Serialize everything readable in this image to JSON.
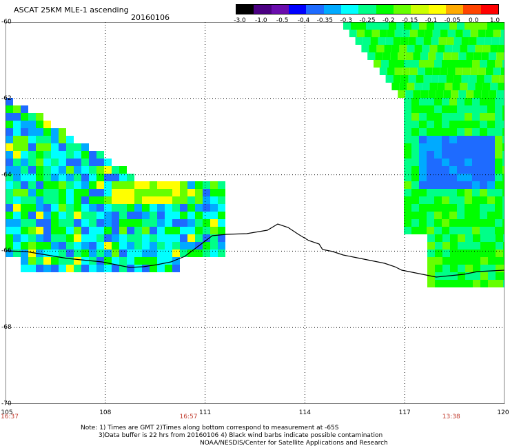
{
  "title": "ASCAT 25KM MLE-1 ascending",
  "date": "20160106",
  "colorbar": {
    "labels": [
      "-3.0",
      "-1.0",
      "-0.5",
      "-0.4",
      "-0.35",
      "-0.3",
      "-0.25",
      "-0.2",
      "-0.15",
      "-0.1",
      "-0.05",
      "0.0",
      "1.0"
    ],
    "colors": [
      "#000000",
      "#4b0082",
      "#6a0dad",
      "#0000ff",
      "#1e6bff",
      "#00aaff",
      "#00ffff",
      "#00ff88",
      "#00ff00",
      "#66ff00",
      "#ccff00",
      "#ffff00",
      "#ffaa00",
      "#ff4400",
      "#ff0000"
    ]
  },
  "map": {
    "x_ticks": [
      "105",
      "108",
      "111",
      "114",
      "117",
      "120"
    ],
    "y_ticks": [
      "-60",
      "-62",
      "-64",
      "-66",
      "-68",
      "-70"
    ],
    "lon_range": [
      105,
      120
    ],
    "lat_range": [
      -60,
      -70
    ],
    "grid": true,
    "times": [
      "16:37",
      "16:57",
      "13:38"
    ],
    "time_lons": [
      105,
      110.5,
      118.4
    ]
  },
  "notes": [
    "Note: 1) Times are GMT 2)Times along bottom correspond to measurement at -65S",
    "3)Data buffer is 22 hrs from 20160106 4) Black wind barbs indicate possible contamination",
    "NOAA/NESDIS/Center for Satellite Applications and Research"
  ]
}
